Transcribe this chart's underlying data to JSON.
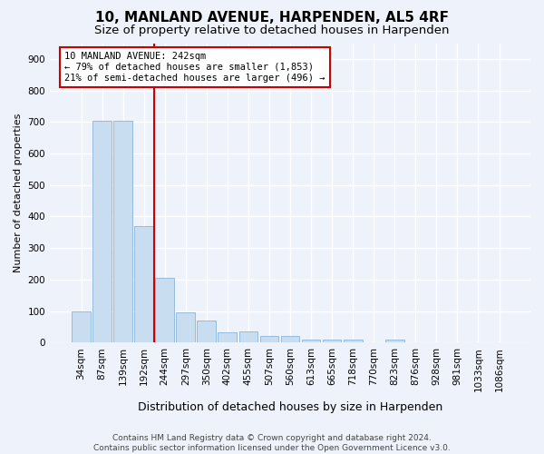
{
  "title": "10, MANLAND AVENUE, HARPENDEN, AL5 4RF",
  "subtitle": "Size of property relative to detached houses in Harpenden",
  "xlabel": "Distribution of detached houses by size in Harpenden",
  "ylabel": "Number of detached properties",
  "categories": [
    "34sqm",
    "87sqm",
    "139sqm",
    "192sqm",
    "244sqm",
    "297sqm",
    "350sqm",
    "402sqm",
    "455sqm",
    "507sqm",
    "560sqm",
    "613sqm",
    "665sqm",
    "718sqm",
    "770sqm",
    "823sqm",
    "876sqm",
    "928sqm",
    "981sqm",
    "1033sqm",
    "1086sqm"
  ],
  "values": [
    100,
    705,
    705,
    370,
    205,
    95,
    70,
    32,
    35,
    22,
    22,
    10,
    10,
    10,
    0,
    10,
    0,
    0,
    0,
    0,
    2
  ],
  "bar_color": "#c9ddf0",
  "bar_edge_color": "#8ab4d8",
  "vline_index": 4,
  "vline_color": "#cc0000",
  "annotation_line1": "10 MANLAND AVENUE: 242sqm",
  "annotation_line2": "← 79% of detached houses are smaller (1,853)",
  "annotation_line3": "21% of semi-detached houses are larger (496) →",
  "annotation_box_facecolor": "white",
  "annotation_box_edgecolor": "#cc0000",
  "ylim": [
    0,
    950
  ],
  "yticks": [
    0,
    100,
    200,
    300,
    400,
    500,
    600,
    700,
    800,
    900
  ],
  "background_color": "#eef2fa",
  "grid_color": "white",
  "footer_text": "Contains HM Land Registry data © Crown copyright and database right 2024.\nContains public sector information licensed under the Open Government Licence v3.0.",
  "title_fontsize": 11,
  "subtitle_fontsize": 9.5,
  "xlabel_fontsize": 9,
  "ylabel_fontsize": 8,
  "tick_fontsize": 7.5,
  "annotation_fontsize": 7.5,
  "footer_fontsize": 6.5
}
